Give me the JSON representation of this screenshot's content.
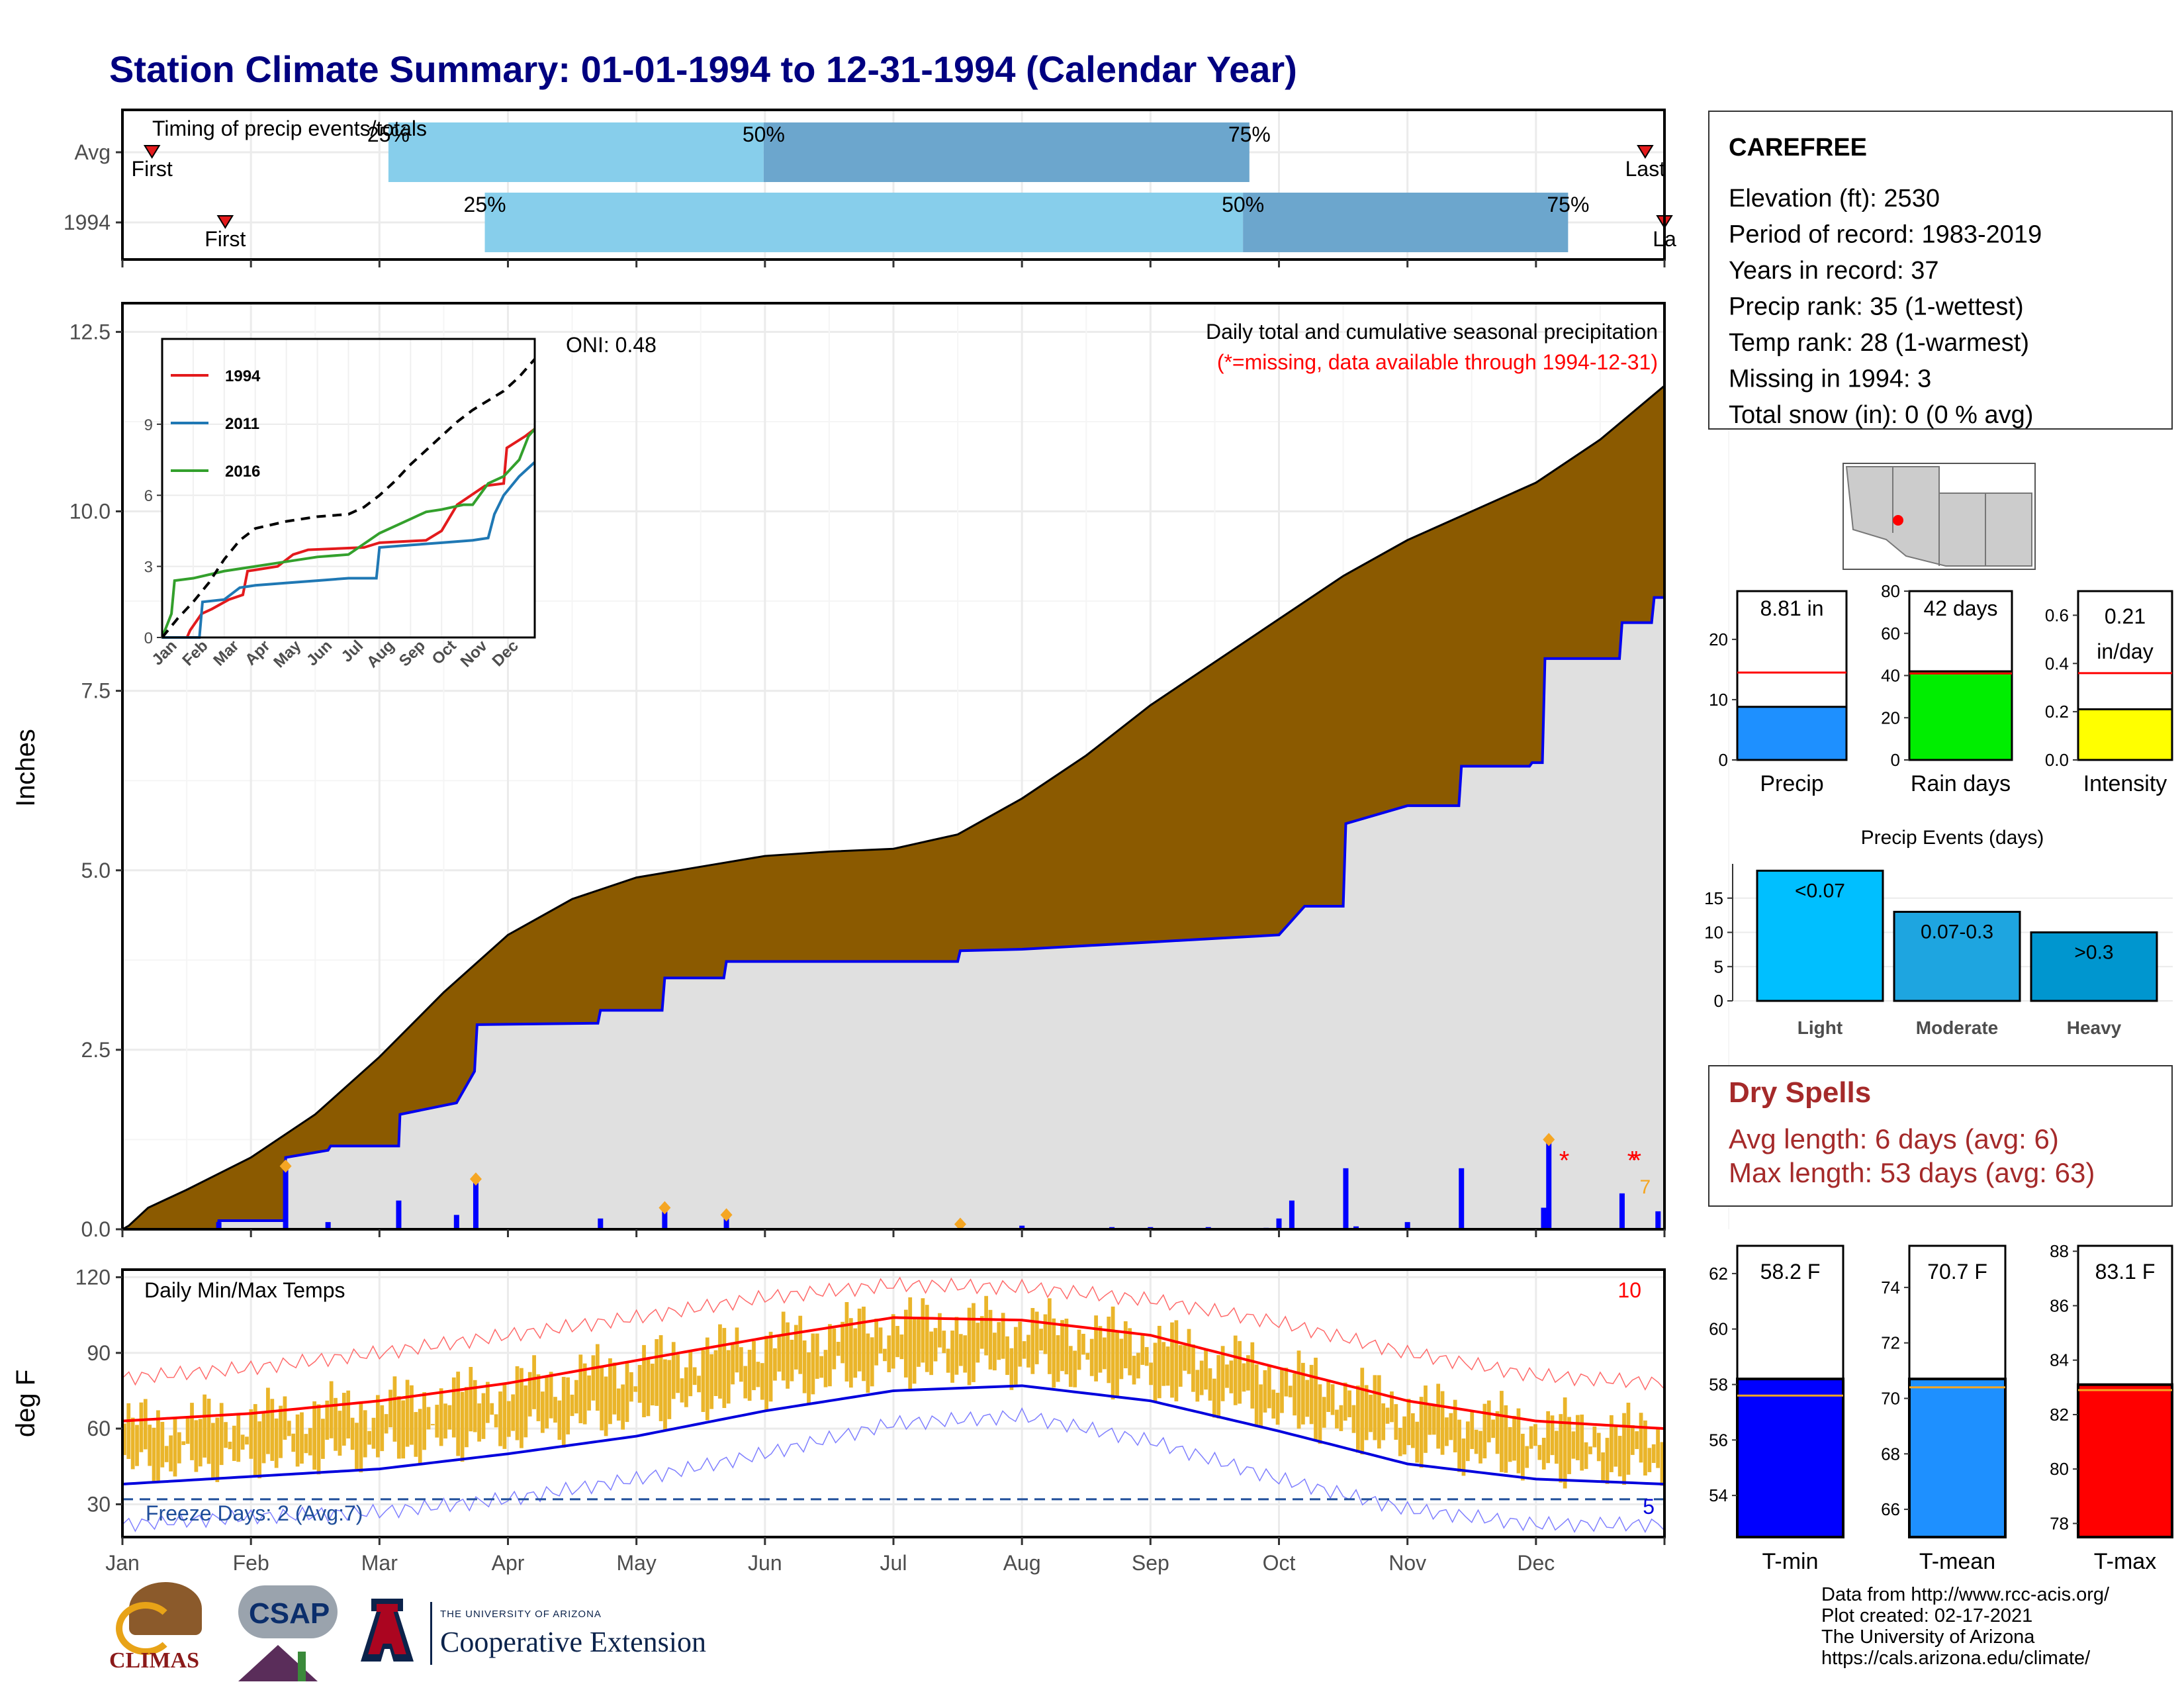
{
  "title": "Station Climate Summary: 01-01-1994 to 12-31-1994 (Calendar Year)",
  "timing": {
    "label": "Timing of precip events/totals",
    "rows": [
      {
        "label": "Avg",
        "first_label": "First",
        "last_label": "Last",
        "first_month": 0.23,
        "p25": 2.07,
        "p50": 4.99,
        "p75": 8.77,
        "last_month": 11.85,
        "p25_label": "25%",
        "p50_label": "50%",
        "p75_label": "75%"
      },
      {
        "label": "1994",
        "first_label": "First",
        "last_label": "La",
        "first_month": 0.8,
        "p25": 2.82,
        "p50": 8.72,
        "p75": 11.25,
        "last_month": 12.0,
        "p25_label": "25%",
        "p50_label": "50%",
        "p75_label": "75%"
      }
    ],
    "colors": {
      "light": "#87ceeb",
      "dark": "#6ca6cd",
      "marker": "#e31a1c"
    }
  },
  "precip": {
    "ylabel": "Inches",
    "yticks": [
      "0.0",
      "2.5",
      "5.0",
      "7.5",
      "10.0",
      "12.5"
    ],
    "annotation_title": "Daily total and cumulative seasonal precipitation",
    "annotation_missing": "(*=missing, data available through 1994-12-31)",
    "oni": "ONI: 0.48",
    "avg_area_color": "#8b5a00",
    "year_area_color": "#e0e0e0",
    "year_line_color": "#0000ee",
    "missing_count": "7",
    "avg_cumulative_curve": [
      [
        0.0,
        0.0
      ],
      [
        0.05,
        0.05
      ],
      [
        0.2,
        0.3
      ],
      [
        0.5,
        0.55
      ],
      [
        1.0,
        1.0
      ],
      [
        1.5,
        1.6
      ],
      [
        2.0,
        2.4
      ],
      [
        2.5,
        3.3
      ],
      [
        3.0,
        4.1
      ],
      [
        3.5,
        4.6
      ],
      [
        4.0,
        4.9
      ],
      [
        4.5,
        5.05
      ],
      [
        5.0,
        5.2
      ],
      [
        5.5,
        5.26
      ],
      [
        6.0,
        5.3
      ],
      [
        6.5,
        5.5
      ],
      [
        7.0,
        6.0
      ],
      [
        7.5,
        6.6
      ],
      [
        8.0,
        7.3
      ],
      [
        8.5,
        7.9
      ],
      [
        9.0,
        8.5
      ],
      [
        9.5,
        9.1
      ],
      [
        10.0,
        9.6
      ],
      [
        10.5,
        10.0
      ],
      [
        11.0,
        10.4
      ],
      [
        11.5,
        11.0
      ],
      [
        12.0,
        11.75
      ]
    ],
    "year_cumulative_steps": [
      [
        0.0,
        0.0
      ],
      [
        0.74,
        0.0
      ],
      [
        0.75,
        0.12
      ],
      [
        1.26,
        0.12
      ],
      [
        1.27,
        1.0
      ],
      [
        1.6,
        1.1
      ],
      [
        1.62,
        1.16
      ],
      [
        2.15,
        1.16
      ],
      [
        2.16,
        1.6
      ],
      [
        2.6,
        1.76
      ],
      [
        2.74,
        2.2
      ],
      [
        2.76,
        2.85
      ],
      [
        3.7,
        2.87
      ],
      [
        3.72,
        3.05
      ],
      [
        4.2,
        3.05
      ],
      [
        4.22,
        3.5
      ],
      [
        4.68,
        3.5
      ],
      [
        4.7,
        3.73
      ],
      [
        6.5,
        3.73
      ],
      [
        6.52,
        3.88
      ],
      [
        7.0,
        3.9
      ],
      [
        7.5,
        3.95
      ],
      [
        8.0,
        4.0
      ],
      [
        8.5,
        4.05
      ],
      [
        9.0,
        4.1
      ],
      [
        9.1,
        4.3
      ],
      [
        9.2,
        4.5
      ],
      [
        9.5,
        4.5
      ],
      [
        9.52,
        5.65
      ],
      [
        10.0,
        5.9
      ],
      [
        10.4,
        5.9
      ],
      [
        10.42,
        6.45
      ],
      [
        10.95,
        6.45
      ],
      [
        10.97,
        6.5
      ],
      [
        11.05,
        6.5
      ],
      [
        11.07,
        7.95
      ],
      [
        11.65,
        7.95
      ],
      [
        11.67,
        8.45
      ],
      [
        11.9,
        8.45
      ],
      [
        11.92,
        8.8
      ],
      [
        12.0,
        8.8
      ]
    ],
    "daily_bars": [
      [
        0.75,
        0.1
      ],
      [
        1.27,
        0.9
      ],
      [
        1.6,
        0.1
      ],
      [
        2.15,
        0.4
      ],
      [
        2.6,
        0.2
      ],
      [
        2.75,
        0.65
      ],
      [
        3.72,
        0.15
      ],
      [
        4.22,
        0.3
      ],
      [
        4.7,
        0.2
      ],
      [
        6.52,
        0.07
      ],
      [
        7.0,
        0.05
      ],
      [
        7.7,
        0.03
      ],
      [
        8.0,
        0.03
      ],
      [
        8.45,
        0.03
      ],
      [
        8.9,
        0.02
      ],
      [
        9.0,
        0.15
      ],
      [
        9.1,
        0.4
      ],
      [
        9.52,
        0.85
      ],
      [
        9.6,
        0.04
      ],
      [
        10.0,
        0.1
      ],
      [
        10.42,
        0.85
      ],
      [
        11.06,
        0.3
      ],
      [
        11.1,
        1.25
      ],
      [
        11.67,
        0.5
      ],
      [
        11.95,
        0.25
      ]
    ],
    "markers": [
      [
        1.27,
        0.88
      ],
      [
        2.75,
        0.7
      ],
      [
        4.22,
        0.3
      ],
      [
        4.7,
        0.2
      ],
      [
        6.52,
        0.07
      ],
      [
        11.1,
        1.25
      ]
    ],
    "missing_markers": [
      [
        11.22,
        1.0
      ],
      [
        11.75,
        1.0
      ],
      [
        11.78,
        1.0
      ]
    ]
  },
  "inset": {
    "yticks": [
      "0",
      "3",
      "6",
      "9"
    ],
    "months": [
      "Jan",
      "Feb",
      "Mar",
      "Apr",
      "May",
      "Jun",
      "Jul",
      "Aug",
      "Sep",
      "Oct",
      "Nov",
      "Dec"
    ],
    "series": [
      {
        "name": "1994",
        "color": "#e31a1c",
        "points": [
          [
            0,
            0
          ],
          [
            0.8,
            0
          ],
          [
            0.9,
            0.3
          ],
          [
            1.27,
            1.0
          ],
          [
            1.6,
            1.2
          ],
          [
            2.15,
            1.6
          ],
          [
            2.6,
            1.8
          ],
          [
            2.75,
            2.8
          ],
          [
            3.72,
            3.0
          ],
          [
            4.22,
            3.5
          ],
          [
            4.7,
            3.7
          ],
          [
            6.5,
            3.8
          ],
          [
            7.0,
            4.0
          ],
          [
            8.5,
            4.1
          ],
          [
            9.0,
            4.5
          ],
          [
            9.5,
            5.6
          ],
          [
            10.4,
            6.4
          ],
          [
            11.0,
            6.5
          ],
          [
            11.1,
            8.0
          ],
          [
            11.7,
            8.5
          ],
          [
            12,
            8.8
          ]
        ]
      },
      {
        "name": "2011",
        "color": "#1f78b4",
        "points": [
          [
            0,
            0
          ],
          [
            1.2,
            0
          ],
          [
            1.3,
            1.5
          ],
          [
            2.0,
            1.6
          ],
          [
            2.5,
            2.1
          ],
          [
            3.0,
            2.2
          ],
          [
            4.0,
            2.3
          ],
          [
            5.0,
            2.4
          ],
          [
            6.0,
            2.5
          ],
          [
            6.9,
            2.5
          ],
          [
            7.0,
            3.8
          ],
          [
            8.0,
            3.9
          ],
          [
            9.0,
            4.0
          ],
          [
            10.0,
            4.1
          ],
          [
            10.5,
            4.2
          ],
          [
            10.7,
            5.2
          ],
          [
            11.0,
            6.0
          ],
          [
            11.5,
            6.8
          ],
          [
            12,
            7.4
          ]
        ]
      },
      {
        "name": "2016",
        "color": "#33a02c",
        "points": [
          [
            0,
            0
          ],
          [
            0.3,
            1.0
          ],
          [
            0.4,
            2.4
          ],
          [
            1.0,
            2.5
          ],
          [
            2.0,
            2.8
          ],
          [
            3.0,
            3.0
          ],
          [
            4.0,
            3.2
          ],
          [
            5.0,
            3.4
          ],
          [
            6.0,
            3.5
          ],
          [
            7.0,
            4.4
          ],
          [
            8.0,
            5.0
          ],
          [
            8.5,
            5.3
          ],
          [
            9.0,
            5.4
          ],
          [
            9.7,
            5.6
          ],
          [
            10.0,
            5.6
          ],
          [
            10.5,
            6.5
          ],
          [
            11.0,
            6.8
          ],
          [
            11.5,
            7.5
          ],
          [
            11.8,
            8.5
          ],
          [
            12,
            8.8
          ]
        ]
      }
    ],
    "avg_curve": [
      [
        0,
        0
      ],
      [
        0.5,
        0.8
      ],
      [
        1.0,
        1.5
      ],
      [
        1.5,
        2.3
      ],
      [
        2.0,
        3.3
      ],
      [
        2.5,
        4.1
      ],
      [
        3.0,
        4.6
      ],
      [
        4.0,
        4.9
      ],
      [
        5.0,
        5.1
      ],
      [
        6.0,
        5.2
      ],
      [
        6.5,
        5.5
      ],
      [
        7.0,
        6.0
      ],
      [
        7.5,
        6.6
      ],
      [
        8.0,
        7.3
      ],
      [
        8.5,
        7.9
      ],
      [
        9.0,
        8.5
      ],
      [
        9.5,
        9.1
      ],
      [
        10.0,
        9.6
      ],
      [
        10.5,
        10.0
      ],
      [
        11.0,
        10.4
      ],
      [
        11.5,
        11.0
      ],
      [
        12.0,
        11.75
      ]
    ]
  },
  "temps": {
    "label": "Daily Min/Max Temps",
    "ylabel": "deg F",
    "yticks": [
      "30",
      "60",
      "90",
      "120"
    ],
    "hot_count": "10",
    "cold_count": "5",
    "freeze_label": "Freeze Days: 2 (Avg:7)",
    "freeze_line": 32,
    "bar_color": "#eab52a",
    "avg_max_curve": [
      [
        0,
        63
      ],
      [
        1,
        66
      ],
      [
        2,
        71
      ],
      [
        3,
        78
      ],
      [
        4,
        87
      ],
      [
        5,
        96
      ],
      [
        6,
        104
      ],
      [
        7,
        103
      ],
      [
        8,
        97
      ],
      [
        9,
        84
      ],
      [
        10,
        71
      ],
      [
        11,
        63
      ],
      [
        12,
        60
      ]
    ],
    "avg_min_curve": [
      [
        0,
        38
      ],
      [
        1,
        41
      ],
      [
        2,
        44
      ],
      [
        3,
        50
      ],
      [
        4,
        57
      ],
      [
        5,
        67
      ],
      [
        6,
        75
      ],
      [
        7,
        77
      ],
      [
        8,
        71
      ],
      [
        9,
        59
      ],
      [
        10,
        46
      ],
      [
        11,
        40
      ],
      [
        12,
        38
      ]
    ],
    "rec_max_curve": [
      [
        0,
        80
      ],
      [
        1,
        84
      ],
      [
        2,
        90
      ],
      [
        3,
        97
      ],
      [
        4,
        104
      ],
      [
        5,
        112
      ],
      [
        6,
        117
      ],
      [
        7,
        116
      ],
      [
        8,
        111
      ],
      [
        9,
        102
      ],
      [
        10,
        90
      ],
      [
        11,
        81
      ],
      [
        12,
        78
      ]
    ],
    "rec_min_curve": [
      [
        0,
        22
      ],
      [
        1,
        25
      ],
      [
        2,
        27
      ],
      [
        3,
        32
      ],
      [
        4,
        40
      ],
      [
        5,
        50
      ],
      [
        6,
        62
      ],
      [
        7,
        65
      ],
      [
        8,
        55
      ],
      [
        9,
        40
      ],
      [
        10,
        28
      ],
      [
        11,
        22
      ],
      [
        12,
        22
      ]
    ],
    "months": [
      "Jan",
      "Feb",
      "Mar",
      "Apr",
      "May",
      "Jun",
      "Jul",
      "Aug",
      "Sep",
      "Oct",
      "Nov",
      "Dec"
    ]
  },
  "station": {
    "name": "CAREFREE",
    "lines": [
      "Elevation (ft): 2530",
      "Period of record: 1983-2019",
      "Years in record: 37",
      "Precip rank: 35 (1-wettest)",
      "Temp rank: 28 (1-warmest)",
      "Missing in 1994: 3",
      "Total snow (in): 0 (0 % avg)"
    ]
  },
  "mini_bars": [
    {
      "title": "Precip",
      "value_label": "8.81 in",
      "value": 8.81,
      "avg": 14.5,
      "ymax": 28,
      "yticks": [
        0,
        10,
        20
      ],
      "color": "#1e90ff"
    },
    {
      "title": "Rain days",
      "value_label": "42 days",
      "value": 42,
      "avg": 41,
      "ymax": 80,
      "yticks": [
        0,
        20,
        40,
        60,
        80
      ],
      "color": "#00ee00"
    },
    {
      "title": "Intensity",
      "value_label": "0.21 in/day",
      "value": 0.21,
      "avg": 0.36,
      "ymax": 0.7,
      "yticks": [
        0.0,
        0.2,
        0.4,
        0.6
      ],
      "color": "#ffff00"
    }
  ],
  "precip_events": {
    "title": "Precip Events (days)",
    "yticks": [
      0,
      5,
      10,
      15
    ],
    "bars": [
      {
        "category": "Light",
        "label": "<0.07",
        "value": 19,
        "color": "#00bfff"
      },
      {
        "category": "Moderate",
        "label": "0.07-0.3",
        "value": 13,
        "color": "#1ea5e0"
      },
      {
        "category": "Heavy",
        "label": ">0.3",
        "value": 10,
        "color": "#0096cf"
      }
    ]
  },
  "dry_spells": {
    "title": "Dry Spells",
    "avg_line": "Avg length: 6 days (avg: 6)",
    "max_line": "Max length: 53 days (avg: 63)"
  },
  "temp_bars": [
    {
      "title": "T-min",
      "value_label": "58.2 F",
      "value": 58.2,
      "avg": 57.6,
      "ylim": [
        52.5,
        63
      ],
      "yticks": [
        54,
        56,
        58,
        60,
        62
      ],
      "color": "#0000ff"
    },
    {
      "title": "T-mean",
      "value_label": "70.7 F",
      "value": 70.7,
      "avg": 70.4,
      "ylim": [
        65,
        75.5
      ],
      "yticks": [
        66,
        68,
        70,
        72,
        74
      ],
      "color": "#1e90ff"
    },
    {
      "title": "T-max",
      "value_label": "83.1 F",
      "value": 83.1,
      "avg": 82.9,
      "ylim": [
        77.5,
        88.2
      ],
      "yticks": [
        78,
        80,
        82,
        84,
        86,
        88
      ],
      "color": "#ff0000"
    }
  ],
  "footer": {
    "source": "Data from http://www.rcc-acis.org/",
    "created": "Plot created: 02-17-2021",
    "org": "The University of Arizona",
    "url": "https://cals.arizona.edu/climate/",
    "logo_climas": "CLIMAS",
    "logo_csap": "CSAP",
    "logo_ua_small": "THE UNIVERSITY OF ARIZONA",
    "logo_ua_big": "Cooperative Extension"
  }
}
